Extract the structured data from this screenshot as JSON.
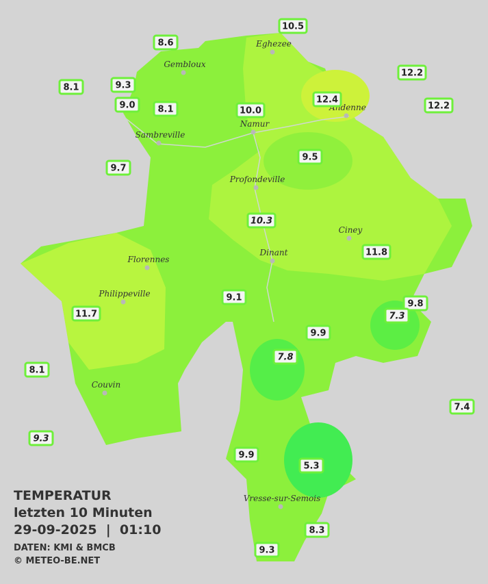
{
  "header": {
    "title": "TEMPERATUR",
    "subtitle": "letzten 10 Minuten",
    "datetime": "29-09-2025  |  01:10",
    "source": "DATEN: KMI & BMCB",
    "copyright": "© METEO-BE.NET"
  },
  "cities": [
    "Eghezee",
    "Gembloux",
    "Andenne",
    "Namur",
    "Sambreville",
    "Profondeville",
    "Ciney",
    "Florennes",
    "Dinant",
    "Philippeville",
    "Couvin",
    "Vresse-sur-Semois"
  ],
  "stations": [
    {
      "label": "10.5",
      "italic": false
    },
    {
      "label": "8.6",
      "italic": false
    },
    {
      "label": "8.1",
      "italic": false
    },
    {
      "label": "9.3",
      "italic": false
    },
    {
      "label": "12.2",
      "italic": false
    },
    {
      "label": "9.0",
      "italic": false
    },
    {
      "label": "8.1",
      "italic": false
    },
    {
      "label": "10.0",
      "italic": false
    },
    {
      "label": "12.4",
      "italic": false
    },
    {
      "label": "12.2",
      "italic": false
    },
    {
      "label": "9.5",
      "italic": false
    },
    {
      "label": "9.7",
      "italic": false
    },
    {
      "label": "10.3",
      "italic": true
    },
    {
      "label": "11.8",
      "italic": false
    },
    {
      "label": "9.1",
      "italic": false
    },
    {
      "label": "9.8",
      "italic": false
    },
    {
      "label": "7.3",
      "italic": true
    },
    {
      "label": "11.7",
      "italic": false
    },
    {
      "label": "9.9",
      "italic": false
    },
    {
      "label": "7.8",
      "italic": true
    },
    {
      "label": "8.1",
      "italic": false
    },
    {
      "label": "7.4",
      "italic": false
    },
    {
      "label": "9.3",
      "italic": true
    },
    {
      "label": "9.9",
      "italic": false
    },
    {
      "label": "5.3",
      "italic": false
    },
    {
      "label": "8.3",
      "italic": false
    },
    {
      "label": "9.3",
      "italic": false
    }
  ]
}
